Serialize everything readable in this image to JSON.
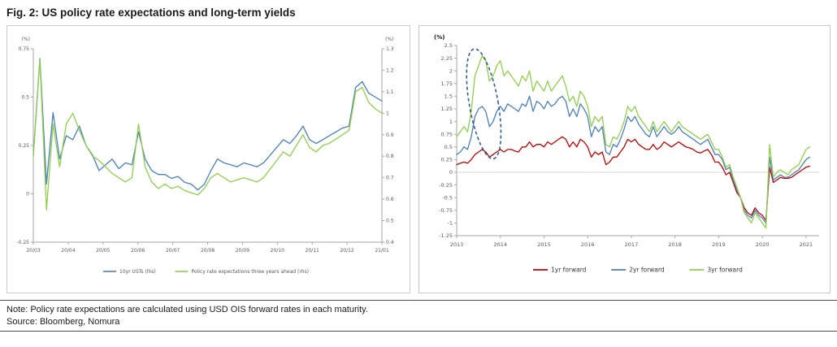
{
  "title": "Fig. 2: US policy rate expectations and long-term yields",
  "note": "Note: Policy rate expectations are calculated using USD OIS forward rates in each maturity.",
  "source": "Source: Bloomberg, Nomura",
  "colors": {
    "blue": "#4a7ebb",
    "green": "#8ed047",
    "red": "#c00000",
    "annotation": "#2f5e91",
    "axis": "#a6a6a6",
    "tick_text": "#595959"
  },
  "chart_data": [
    {
      "type": "line",
      "axis_label_left": "(%)",
      "axis_label_right": "(%)",
      "x_ticklabels": [
        "20/03",
        "20/04",
        "20/05",
        "20/06",
        "20/07",
        "20/08",
        "20/09",
        "20/10",
        "20/11",
        "20/12",
        "21/01"
      ],
      "left_axis": {
        "min": -0.25,
        "max": 0.75,
        "ticks": [
          0.75,
          0.5,
          0.25,
          0,
          -0.25
        ]
      },
      "right_axis": {
        "min": 0.4,
        "max": 1.3,
        "ticks": [
          1.3,
          1.2,
          1.1,
          1,
          0.9,
          0.8,
          0.7,
          0.6,
          0.5,
          0.4
        ]
      },
      "series": [
        {
          "name": "10yr USTs (lhs)",
          "axis": "left",
          "color": "blue",
          "values": [
            0.2,
            0.7,
            0.05,
            0.42,
            0.18,
            0.3,
            0.28,
            0.35,
            0.25,
            0.2,
            0.12,
            0.15,
            0.18,
            0.13,
            0.16,
            0.15,
            0.32,
            0.18,
            0.12,
            0.1,
            0.1,
            0.08,
            0.09,
            0.06,
            0.05,
            0.02,
            0.05,
            0.12,
            0.18,
            0.16,
            0.15,
            0.14,
            0.16,
            0.15,
            0.14,
            0.16,
            0.2,
            0.24,
            0.28,
            0.26,
            0.3,
            0.35,
            0.28,
            0.26,
            0.28,
            0.3,
            0.32,
            0.34,
            0.35,
            0.55,
            0.58,
            0.52,
            0.5,
            0.48
          ]
        },
        {
          "name": "Policy rate expectations three years ahead (rhs)",
          "axis": "right",
          "color": "green",
          "values": [
            0.8,
            1.25,
            0.55,
            0.95,
            0.75,
            0.95,
            1.0,
            0.92,
            0.85,
            0.8,
            0.78,
            0.75,
            0.72,
            0.7,
            0.68,
            0.7,
            0.95,
            0.75,
            0.68,
            0.65,
            0.67,
            0.65,
            0.66,
            0.64,
            0.63,
            0.62,
            0.65,
            0.7,
            0.72,
            0.7,
            0.68,
            0.69,
            0.7,
            0.69,
            0.68,
            0.7,
            0.74,
            0.78,
            0.82,
            0.8,
            0.85,
            0.9,
            0.84,
            0.82,
            0.85,
            0.86,
            0.88,
            0.9,
            0.92,
            1.1,
            1.12,
            1.05,
            1.02,
            1.0
          ]
        }
      ]
    },
    {
      "type": "line",
      "axis_label": "(%)",
      "x_start": 2013.0,
      "x_step_years": 0.0833333,
      "x_axis": {
        "min": 2013,
        "max": 2021.3,
        "ticks": [
          2013,
          2014,
          2015,
          2016,
          2017,
          2018,
          2019,
          2020,
          2021
        ]
      },
      "y_axis": {
        "min": -1.25,
        "max": 2.5,
        "ticks": [
          2.5,
          2.25,
          2,
          1.75,
          1.5,
          1.25,
          1,
          0.75,
          0.5,
          0.25,
          0,
          -0.25,
          -0.5,
          -0.75,
          -1,
          -1.25
        ]
      },
      "series": [
        {
          "name": "1yr forward",
          "color": "red",
          "values": [
            0.15,
            0.18,
            0.2,
            0.18,
            0.25,
            0.35,
            0.4,
            0.45,
            0.4,
            0.3,
            0.35,
            0.4,
            0.45,
            0.4,
            0.45,
            0.45,
            0.42,
            0.4,
            0.5,
            0.5,
            0.6,
            0.5,
            0.55,
            0.55,
            0.5,
            0.6,
            0.55,
            0.6,
            0.65,
            0.7,
            0.65,
            0.5,
            0.6,
            0.5,
            0.65,
            0.6,
            0.5,
            0.3,
            0.4,
            0.35,
            0.4,
            0.15,
            0.2,
            0.3,
            0.3,
            0.4,
            0.5,
            0.65,
            0.6,
            0.65,
            0.55,
            0.5,
            0.45,
            0.45,
            0.55,
            0.45,
            0.5,
            0.6,
            0.55,
            0.5,
            0.55,
            0.6,
            0.55,
            0.5,
            0.48,
            0.45,
            0.4,
            0.38,
            0.42,
            0.45,
            0.35,
            0.2,
            0.2,
            0.1,
            -0.05,
            0.0,
            -0.2,
            -0.4,
            -0.5,
            -0.7,
            -0.8,
            -0.85,
            -0.7,
            -0.8,
            -0.85,
            -0.95,
            0.1,
            -0.2,
            -0.15,
            -0.1,
            -0.12,
            -0.12,
            -0.1,
            -0.05,
            0.0,
            0.05,
            0.1,
            0.12
          ]
        },
        {
          "name": "2yr forward",
          "color": "blue",
          "values": [
            0.35,
            0.4,
            0.5,
            0.45,
            0.7,
            1.1,
            1.25,
            1.3,
            1.2,
            0.9,
            1.0,
            1.2,
            1.3,
            1.2,
            1.35,
            1.3,
            1.25,
            1.2,
            1.35,
            1.3,
            1.5,
            1.2,
            1.4,
            1.35,
            1.25,
            1.4,
            1.3,
            1.35,
            1.45,
            1.5,
            1.4,
            1.1,
            1.25,
            1.1,
            1.35,
            1.25,
            1.1,
            0.7,
            0.9,
            0.8,
            0.9,
            0.4,
            0.35,
            0.55,
            0.5,
            0.65,
            0.85,
            1.1,
            1.0,
            1.1,
            0.95,
            0.85,
            0.75,
            0.7,
            0.9,
            0.7,
            0.8,
            0.9,
            0.8,
            0.75,
            0.8,
            0.9,
            0.8,
            0.75,
            0.7,
            0.65,
            0.6,
            0.55,
            0.6,
            0.65,
            0.5,
            0.35,
            0.35,
            0.25,
            0.05,
            0.1,
            -0.15,
            -0.35,
            -0.5,
            -0.75,
            -0.85,
            -0.9,
            -0.75,
            -0.85,
            -0.9,
            -1.0,
            0.3,
            -0.15,
            -0.1,
            -0.05,
            -0.1,
            -0.1,
            -0.05,
            0.0,
            0.05,
            0.15,
            0.25,
            0.3
          ]
        },
        {
          "name": "3yr forward",
          "color": "green",
          "values": [
            0.7,
            0.8,
            0.9,
            0.8,
            1.2,
            1.9,
            2.1,
            2.3,
            2.2,
            1.8,
            1.9,
            2.1,
            2.2,
            1.9,
            2.0,
            1.9,
            1.8,
            1.7,
            1.9,
            1.8,
            2.0,
            1.6,
            1.8,
            1.7,
            1.6,
            1.8,
            1.6,
            1.7,
            1.8,
            1.9,
            1.7,
            1.4,
            1.5,
            1.3,
            1.6,
            1.5,
            1.3,
            0.9,
            1.1,
            1.0,
            1.1,
            0.55,
            0.5,
            0.7,
            0.65,
            0.8,
            1.0,
            1.3,
            1.2,
            1.3,
            1.1,
            1.0,
            0.9,
            0.8,
            1.0,
            0.8,
            0.9,
            1.0,
            0.9,
            0.8,
            0.9,
            1.0,
            0.9,
            0.85,
            0.8,
            0.75,
            0.7,
            0.65,
            0.7,
            0.75,
            0.6,
            0.45,
            0.45,
            0.3,
            0.1,
            0.15,
            -0.1,
            -0.3,
            -0.5,
            -0.8,
            -0.9,
            -1.0,
            -0.8,
            -0.9,
            -1.0,
            -1.1,
            0.55,
            -0.1,
            0.0,
            0.05,
            0.0,
            -0.05,
            0.05,
            0.1,
            0.15,
            0.3,
            0.45,
            0.5
          ]
        }
      ],
      "annotation": {
        "type": "dashed-ellipse",
        "x_center": 2013.62,
        "y_center": 1.35,
        "x_radius_years": 0.33,
        "y_radius": 1.1
      }
    }
  ]
}
